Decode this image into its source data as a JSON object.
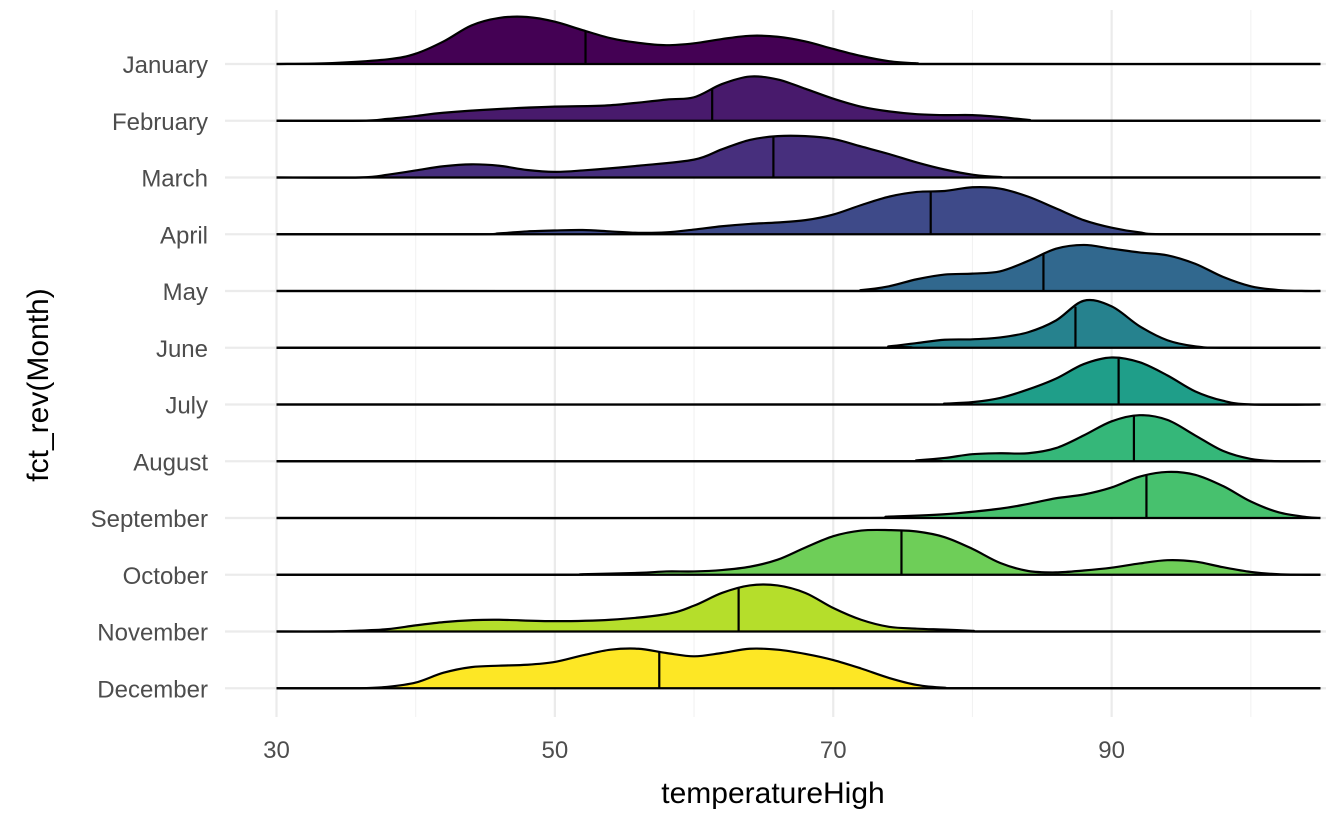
{
  "chart_data": {
    "type": "ridgeline",
    "xlabel": "temperatureHigh",
    "ylabel": "fct_rev(Month)",
    "x_ticks": [
      30,
      50,
      70,
      90
    ],
    "xlim": [
      26.3,
      105.4
    ],
    "x_data_range": [
      30,
      105
    ],
    "grid": true,
    "legend": "none",
    "outline_color": "#000000",
    "series": [
      {
        "name": "January",
        "color": "#440154",
        "median": 52.2,
        "density": [
          [
            30,
            0
          ],
          [
            34,
            0.02
          ],
          [
            38,
            0.1
          ],
          [
            40,
            0.22
          ],
          [
            42,
            0.48
          ],
          [
            44,
            0.82
          ],
          [
            46,
            0.98
          ],
          [
            48,
            1.0
          ],
          [
            50,
            0.9
          ],
          [
            52,
            0.72
          ],
          [
            54,
            0.55
          ],
          [
            56,
            0.45
          ],
          [
            58,
            0.4
          ],
          [
            60,
            0.44
          ],
          [
            62,
            0.53
          ],
          [
            64,
            0.6
          ],
          [
            66,
            0.58
          ],
          [
            68,
            0.48
          ],
          [
            70,
            0.32
          ],
          [
            72,
            0.17
          ],
          [
            74,
            0.06
          ],
          [
            76,
            0.015
          ],
          [
            78,
            0
          ],
          [
            105,
            0
          ]
        ]
      },
      {
        "name": "February",
        "color": "#481a6c",
        "median": 61.3,
        "density": [
          [
            30,
            0
          ],
          [
            36,
            0
          ],
          [
            38,
            0.04
          ],
          [
            40,
            0.1
          ],
          [
            42,
            0.17
          ],
          [
            46,
            0.25
          ],
          [
            50,
            0.3
          ],
          [
            54,
            0.33
          ],
          [
            58,
            0.45
          ],
          [
            60,
            0.5
          ],
          [
            62,
            0.78
          ],
          [
            64,
            0.94
          ],
          [
            66,
            0.88
          ],
          [
            68,
            0.68
          ],
          [
            70,
            0.47
          ],
          [
            72,
            0.3
          ],
          [
            74,
            0.2
          ],
          [
            76,
            0.14
          ],
          [
            78,
            0.12
          ],
          [
            80,
            0.12
          ],
          [
            82,
            0.08
          ],
          [
            84,
            0.02
          ],
          [
            86,
            0
          ],
          [
            105,
            0
          ]
        ]
      },
      {
        "name": "March",
        "color": "#472f7d",
        "median": 65.7,
        "density": [
          [
            30,
            0
          ],
          [
            36,
            0
          ],
          [
            38,
            0.06
          ],
          [
            40,
            0.15
          ],
          [
            42,
            0.24
          ],
          [
            44,
            0.28
          ],
          [
            46,
            0.25
          ],
          [
            48,
            0.16
          ],
          [
            50,
            0.12
          ],
          [
            52,
            0.15
          ],
          [
            56,
            0.25
          ],
          [
            60,
            0.38
          ],
          [
            62,
            0.6
          ],
          [
            64,
            0.8
          ],
          [
            66,
            0.88
          ],
          [
            68,
            0.88
          ],
          [
            70,
            0.82
          ],
          [
            72,
            0.66
          ],
          [
            74,
            0.5
          ],
          [
            76,
            0.32
          ],
          [
            78,
            0.17
          ],
          [
            80,
            0.06
          ],
          [
            82,
            0.01
          ],
          [
            84,
            0
          ],
          [
            105,
            0
          ]
        ]
      },
      {
        "name": "April",
        "color": "#3e4a89",
        "median": 77.0,
        "density": [
          [
            30,
            0
          ],
          [
            44,
            0
          ],
          [
            46,
            0.02
          ],
          [
            48,
            0.06
          ],
          [
            50,
            0.08
          ],
          [
            52,
            0.09
          ],
          [
            54,
            0.06
          ],
          [
            56,
            0.03
          ],
          [
            58,
            0.04
          ],
          [
            60,
            0.1
          ],
          [
            62,
            0.17
          ],
          [
            64,
            0.22
          ],
          [
            66,
            0.25
          ],
          [
            68,
            0.3
          ],
          [
            70,
            0.42
          ],
          [
            72,
            0.62
          ],
          [
            74,
            0.8
          ],
          [
            76,
            0.9
          ],
          [
            78,
            0.92
          ],
          [
            80,
            1.0
          ],
          [
            82,
            0.97
          ],
          [
            84,
            0.8
          ],
          [
            86,
            0.55
          ],
          [
            88,
            0.3
          ],
          [
            90,
            0.14
          ],
          [
            92,
            0.04
          ],
          [
            94,
            0
          ],
          [
            105,
            0
          ]
        ]
      },
      {
        "name": "May",
        "color": "#31688e",
        "median": 85.1,
        "density": [
          [
            30,
            0
          ],
          [
            70,
            0
          ],
          [
            72,
            0.02
          ],
          [
            74,
            0.1
          ],
          [
            76,
            0.25
          ],
          [
            78,
            0.35
          ],
          [
            80,
            0.37
          ],
          [
            82,
            0.42
          ],
          [
            84,
            0.64
          ],
          [
            86,
            0.9
          ],
          [
            88,
            0.98
          ],
          [
            90,
            0.9
          ],
          [
            92,
            0.82
          ],
          [
            94,
            0.76
          ],
          [
            96,
            0.58
          ],
          [
            98,
            0.3
          ],
          [
            100,
            0.1
          ],
          [
            102,
            0.02
          ],
          [
            104,
            0
          ],
          [
            105,
            0
          ]
        ]
      },
      {
        "name": "June",
        "color": "#26828e",
        "median": 87.4,
        "density": [
          [
            30,
            0
          ],
          [
            72,
            0
          ],
          [
            74,
            0.03
          ],
          [
            76,
            0.1
          ],
          [
            78,
            0.17
          ],
          [
            80,
            0.18
          ],
          [
            82,
            0.22
          ],
          [
            84,
            0.33
          ],
          [
            86,
            0.58
          ],
          [
            88,
            1.0
          ],
          [
            90,
            0.88
          ],
          [
            92,
            0.46
          ],
          [
            94,
            0.16
          ],
          [
            96,
            0.03
          ],
          [
            98,
            0
          ],
          [
            105,
            0
          ]
        ]
      },
      {
        "name": "July",
        "color": "#1f9e89",
        "median": 90.5,
        "density": [
          [
            30,
            0
          ],
          [
            76,
            0
          ],
          [
            78,
            0.02
          ],
          [
            80,
            0.05
          ],
          [
            82,
            0.14
          ],
          [
            84,
            0.32
          ],
          [
            86,
            0.55
          ],
          [
            88,
            0.86
          ],
          [
            90,
            1.0
          ],
          [
            92,
            0.9
          ],
          [
            94,
            0.62
          ],
          [
            96,
            0.28
          ],
          [
            98,
            0.08
          ],
          [
            100,
            0
          ],
          [
            105,
            0
          ]
        ]
      },
      {
        "name": "August",
        "color": "#35b779",
        "median": 91.6,
        "density": [
          [
            30,
            0
          ],
          [
            74,
            0
          ],
          [
            76,
            0.02
          ],
          [
            78,
            0.07
          ],
          [
            80,
            0.15
          ],
          [
            82,
            0.17
          ],
          [
            84,
            0.17
          ],
          [
            86,
            0.28
          ],
          [
            88,
            0.55
          ],
          [
            90,
            0.85
          ],
          [
            92,
            0.98
          ],
          [
            94,
            0.88
          ],
          [
            96,
            0.55
          ],
          [
            98,
            0.22
          ],
          [
            100,
            0.05
          ],
          [
            102,
            0
          ],
          [
            105,
            0
          ]
        ]
      },
      {
        "name": "September",
        "color": "#47c16e",
        "median": 92.5,
        "density": [
          [
            30,
            0
          ],
          [
            70,
            0
          ],
          [
            74,
            0.03
          ],
          [
            78,
            0.08
          ],
          [
            82,
            0.2
          ],
          [
            84,
            0.3
          ],
          [
            86,
            0.42
          ],
          [
            88,
            0.5
          ],
          [
            90,
            0.65
          ],
          [
            92,
            0.88
          ],
          [
            94,
            0.98
          ],
          [
            96,
            0.92
          ],
          [
            98,
            0.68
          ],
          [
            100,
            0.35
          ],
          [
            102,
            0.12
          ],
          [
            104,
            0.02
          ],
          [
            105,
            0
          ]
        ]
      },
      {
        "name": "October",
        "color": "#6ece58",
        "median": 74.9,
        "density": [
          [
            30,
            0
          ],
          [
            50,
            0
          ],
          [
            52,
            0.01
          ],
          [
            56,
            0.04
          ],
          [
            58,
            0.07
          ],
          [
            60,
            0.07
          ],
          [
            62,
            0.1
          ],
          [
            64,
            0.17
          ],
          [
            66,
            0.32
          ],
          [
            68,
            0.58
          ],
          [
            70,
            0.82
          ],
          [
            72,
            0.94
          ],
          [
            74,
            0.95
          ],
          [
            76,
            0.92
          ],
          [
            78,
            0.8
          ],
          [
            80,
            0.55
          ],
          [
            82,
            0.25
          ],
          [
            84,
            0.08
          ],
          [
            86,
            0.05
          ],
          [
            88,
            0.09
          ],
          [
            90,
            0.15
          ],
          [
            92,
            0.24
          ],
          [
            94,
            0.31
          ],
          [
            96,
            0.28
          ],
          [
            98,
            0.16
          ],
          [
            100,
            0.06
          ],
          [
            102,
            0.01
          ],
          [
            104,
            0
          ],
          [
            105,
            0
          ]
        ]
      },
      {
        "name": "November",
        "color": "#b5de2b",
        "median": 63.2,
        "density": [
          [
            30,
            0
          ],
          [
            34,
            0
          ],
          [
            36,
            0.02
          ],
          [
            38,
            0.05
          ],
          [
            40,
            0.13
          ],
          [
            42,
            0.2
          ],
          [
            44,
            0.24
          ],
          [
            46,
            0.25
          ],
          [
            50,
            0.22
          ],
          [
            54,
            0.25
          ],
          [
            58,
            0.37
          ],
          [
            60,
            0.55
          ],
          [
            62,
            0.82
          ],
          [
            64,
            0.98
          ],
          [
            66,
            0.98
          ],
          [
            68,
            0.82
          ],
          [
            70,
            0.5
          ],
          [
            72,
            0.25
          ],
          [
            74,
            0.1
          ],
          [
            76,
            0.06
          ],
          [
            78,
            0.04
          ],
          [
            80,
            0.015
          ],
          [
            82,
            0
          ],
          [
            105,
            0
          ]
        ]
      },
      {
        "name": "December",
        "color": "#fde725",
        "median": 57.5,
        "density": [
          [
            30,
            0
          ],
          [
            36,
            0
          ],
          [
            38,
            0.03
          ],
          [
            40,
            0.12
          ],
          [
            42,
            0.33
          ],
          [
            44,
            0.45
          ],
          [
            46,
            0.48
          ],
          [
            48,
            0.5
          ],
          [
            50,
            0.56
          ],
          [
            52,
            0.7
          ],
          [
            54,
            0.82
          ],
          [
            56,
            0.84
          ],
          [
            58,
            0.75
          ],
          [
            60,
            0.68
          ],
          [
            62,
            0.75
          ],
          [
            64,
            0.84
          ],
          [
            66,
            0.82
          ],
          [
            68,
            0.73
          ],
          [
            70,
            0.6
          ],
          [
            72,
            0.42
          ],
          [
            74,
            0.22
          ],
          [
            76,
            0.07
          ],
          [
            78,
            0.01
          ],
          [
            80,
            0
          ],
          [
            105,
            0
          ]
        ]
      }
    ]
  }
}
